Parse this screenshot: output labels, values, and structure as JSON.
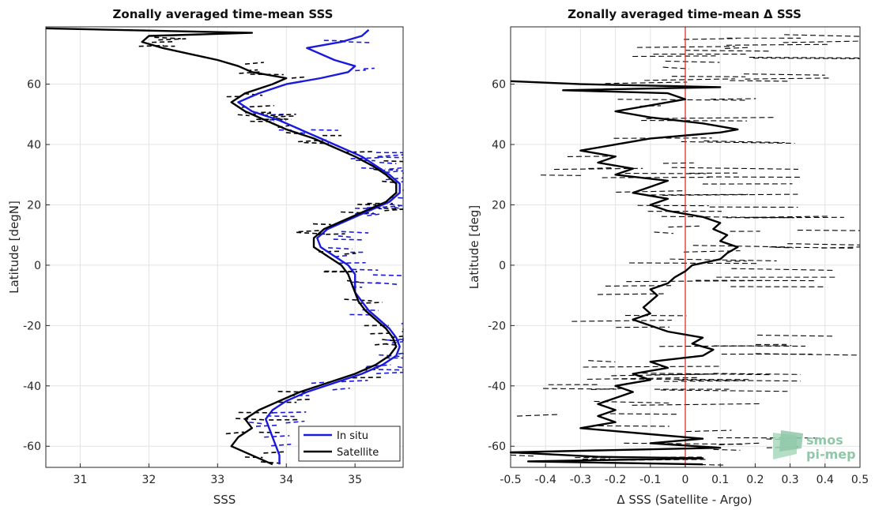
{
  "colors": {
    "in_situ": "#1a1adc",
    "satellite": "#000000",
    "zero_line": "#e0302a",
    "logo": "#8fc8a8"
  },
  "chart_data": [
    {
      "type": "line",
      "title": "Zonally averaged time-mean SSS",
      "xlabel": "SSS",
      "ylabel": "Latitude [degN]",
      "xlim": [
        30.5,
        35.7
      ],
      "ylim": [
        -67,
        79
      ],
      "xticks": [
        31,
        32,
        33,
        34,
        35
      ],
      "yticks": [
        -60,
        -40,
        -20,
        0,
        20,
        40,
        60
      ],
      "grid": true,
      "legend": {
        "placement": "bottom-right",
        "entries": [
          "In situ",
          "Satellite"
        ]
      },
      "series": [
        {
          "name": "In situ",
          "color": "#1a1adc",
          "points": [
            [
              33.9,
              -66
            ],
            [
              33.9,
              -63
            ],
            [
              33.85,
              -60
            ],
            [
              33.8,
              -57
            ],
            [
              33.75,
              -54
            ],
            [
              33.7,
              -51
            ],
            [
              33.8,
              -48
            ],
            [
              34.0,
              -45
            ],
            [
              34.3,
              -42
            ],
            [
              34.7,
              -39
            ],
            [
              35.1,
              -36
            ],
            [
              35.4,
              -33
            ],
            [
              35.6,
              -30
            ],
            [
              35.65,
              -27
            ],
            [
              35.6,
              -24
            ],
            [
              35.5,
              -21
            ],
            [
              35.35,
              -18
            ],
            [
              35.2,
              -15
            ],
            [
              35.1,
              -12
            ],
            [
              35.0,
              -9
            ],
            [
              35.0,
              -6
            ],
            [
              35.0,
              -3
            ],
            [
              34.9,
              0
            ],
            [
              34.7,
              3
            ],
            [
              34.5,
              6
            ],
            [
              34.45,
              9
            ],
            [
              34.6,
              12
            ],
            [
              34.9,
              15
            ],
            [
              35.2,
              18
            ],
            [
              35.5,
              21
            ],
            [
              35.65,
              24
            ],
            [
              35.65,
              27
            ],
            [
              35.5,
              30
            ],
            [
              35.3,
              33
            ],
            [
              35.1,
              36
            ],
            [
              34.8,
              39
            ],
            [
              34.5,
              42
            ],
            [
              34.2,
              45
            ],
            [
              33.9,
              48
            ],
            [
              33.5,
              51
            ],
            [
              33.3,
              54
            ],
            [
              33.6,
              57
            ],
            [
              34.0,
              60
            ],
            [
              34.5,
              62
            ],
            [
              34.9,
              64
            ],
            [
              35.0,
              66
            ],
            [
              34.7,
              68
            ],
            [
              34.5,
              70
            ],
            [
              34.3,
              72
            ],
            [
              34.8,
              74
            ],
            [
              35.1,
              76
            ],
            [
              35.2,
              78
            ]
          ]
        },
        {
          "name": "Satellite",
          "color": "#000000",
          "points": [
            [
              33.8,
              -66
            ],
            [
              33.5,
              -63
            ],
            [
              33.2,
              -60
            ],
            [
              33.3,
              -57
            ],
            [
              33.5,
              -54
            ],
            [
              33.4,
              -51
            ],
            [
              33.6,
              -48
            ],
            [
              33.9,
              -45
            ],
            [
              34.2,
              -42
            ],
            [
              34.6,
              -39
            ],
            [
              35.0,
              -36
            ],
            [
              35.3,
              -33
            ],
            [
              35.5,
              -30
            ],
            [
              35.6,
              -27
            ],
            [
              35.55,
              -24
            ],
            [
              35.45,
              -21
            ],
            [
              35.3,
              -18
            ],
            [
              35.15,
              -15
            ],
            [
              35.05,
              -12
            ],
            [
              35.0,
              -9
            ],
            [
              34.95,
              -6
            ],
            [
              34.9,
              -3
            ],
            [
              34.8,
              0
            ],
            [
              34.6,
              3
            ],
            [
              34.4,
              6
            ],
            [
              34.4,
              9
            ],
            [
              34.55,
              12
            ],
            [
              34.85,
              15
            ],
            [
              35.15,
              18
            ],
            [
              35.45,
              21
            ],
            [
              35.6,
              24
            ],
            [
              35.6,
              27
            ],
            [
              35.45,
              30
            ],
            [
              35.25,
              33
            ],
            [
              35.0,
              36
            ],
            [
              34.7,
              39
            ],
            [
              34.4,
              42
            ],
            [
              34.0,
              45
            ],
            [
              33.7,
              48
            ],
            [
              33.4,
              51
            ],
            [
              33.2,
              54
            ],
            [
              33.4,
              57
            ],
            [
              33.8,
              60
            ],
            [
              34.0,
              62
            ],
            [
              33.5,
              64
            ],
            [
              33.3,
              66
            ],
            [
              33.0,
              68
            ],
            [
              32.6,
              70
            ],
            [
              32.2,
              72
            ],
            [
              31.9,
              74
            ],
            [
              32.0,
              76
            ],
            [
              33.5,
              77
            ],
            [
              30.5,
              78.5
            ]
          ]
        }
      ]
    },
    {
      "type": "line",
      "title": "Zonally averaged time-mean Δ SSS",
      "xlabel": "Δ SSS (Satellite - Argo)",
      "ylabel": "Latitude [deg]",
      "xlim": [
        -0.5,
        0.5
      ],
      "ylim": [
        -67,
        79
      ],
      "xticks": [
        -0.5,
        -0.4,
        -0.3,
        -0.2,
        -0.1,
        0,
        0.1,
        0.2,
        0.3,
        0.4,
        0.5
      ],
      "xticklabels": [
        "-0.5",
        "-0.4",
        "-0.3",
        "-0.2",
        "-0.1",
        "0",
        "0.1",
        "0.2",
        "0.3",
        "0.4",
        "0.5"
      ],
      "yticks": [
        -60,
        -40,
        -20,
        0,
        20,
        40,
        60
      ],
      "grid": true,
      "reference_line": {
        "x": 0,
        "color": "#e0302a"
      },
      "series": [
        {
          "color": "#000000",
          "points": [
            [
              0.05,
              -66
            ],
            [
              -0.45,
              -65
            ],
            [
              0.05,
              -64
            ],
            [
              -0.25,
              -63.5
            ],
            [
              -0.5,
              -62
            ],
            [
              0.1,
              -60.5
            ],
            [
              -0.1,
              -59
            ],
            [
              0.05,
              -57.5
            ],
            [
              -0.1,
              -56
            ],
            [
              -0.3,
              -54
            ],
            [
              -0.2,
              -52
            ],
            [
              -0.25,
              -50
            ],
            [
              -0.2,
              -48
            ],
            [
              -0.25,
              -46
            ],
            [
              -0.2,
              -44
            ],
            [
              -0.15,
              -42
            ],
            [
              -0.2,
              -40
            ],
            [
              -0.1,
              -38
            ],
            [
              -0.15,
              -36
            ],
            [
              -0.05,
              -34
            ],
            [
              -0.1,
              -32
            ],
            [
              0.05,
              -30
            ],
            [
              0.08,
              -28
            ],
            [
              0.02,
              -26
            ],
            [
              0.05,
              -24
            ],
            [
              -0.05,
              -22
            ],
            [
              -0.1,
              -20
            ],
            [
              -0.15,
              -18
            ],
            [
              -0.1,
              -16
            ],
            [
              -0.12,
              -14
            ],
            [
              -0.1,
              -12
            ],
            [
              -0.08,
              -10
            ],
            [
              -0.1,
              -8
            ],
            [
              -0.05,
              -6
            ],
            [
              -0.03,
              -4
            ],
            [
              0.0,
              -2
            ],
            [
              0.02,
              0
            ],
            [
              0.1,
              2
            ],
            [
              0.12,
              4
            ],
            [
              0.15,
              6
            ],
            [
              0.1,
              8
            ],
            [
              0.12,
              10
            ],
            [
              0.08,
              12
            ],
            [
              0.1,
              14
            ],
            [
              0.05,
              16
            ],
            [
              -0.05,
              18
            ],
            [
              -0.1,
              20
            ],
            [
              -0.05,
              22
            ],
            [
              -0.15,
              24
            ],
            [
              -0.1,
              26
            ],
            [
              -0.05,
              28
            ],
            [
              -0.2,
              30
            ],
            [
              -0.15,
              32
            ],
            [
              -0.25,
              34
            ],
            [
              -0.2,
              36
            ],
            [
              -0.3,
              38
            ],
            [
              -0.2,
              40
            ],
            [
              -0.1,
              42
            ],
            [
              0.1,
              44
            ],
            [
              0.15,
              45
            ],
            [
              0.05,
              47
            ],
            [
              -0.1,
              49
            ],
            [
              -0.2,
              51
            ],
            [
              -0.1,
              53
            ],
            [
              0.0,
              55
            ],
            [
              -0.05,
              57
            ],
            [
              -0.35,
              58
            ],
            [
              0.1,
              59
            ],
            [
              -0.3,
              60
            ],
            [
              -0.5,
              61
            ]
          ]
        }
      ]
    }
  ],
  "logo": {
    "line1": "smos",
    "line2": "pi-mep"
  }
}
